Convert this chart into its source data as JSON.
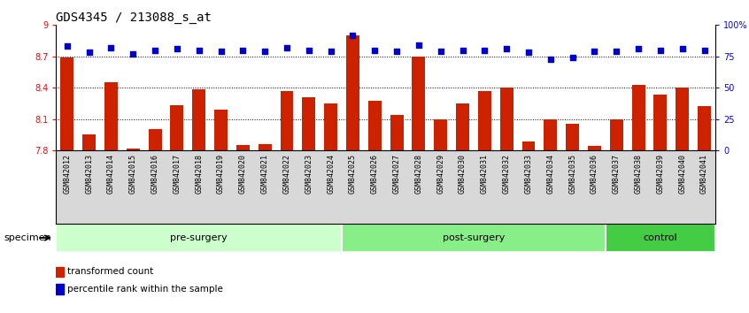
{
  "title": "GDS4345 / 213088_s_at",
  "categories": [
    "GSM842012",
    "GSM842013",
    "GSM842014",
    "GSM842015",
    "GSM842016",
    "GSM842017",
    "GSM842018",
    "GSM842019",
    "GSM842020",
    "GSM842021",
    "GSM842022",
    "GSM842023",
    "GSM842024",
    "GSM842025",
    "GSM842026",
    "GSM842027",
    "GSM842028",
    "GSM842029",
    "GSM842030",
    "GSM842031",
    "GSM842032",
    "GSM842033",
    "GSM842034",
    "GSM842035",
    "GSM842036",
    "GSM842037",
    "GSM842038",
    "GSM842039",
    "GSM842040",
    "GSM842041"
  ],
  "bar_values": [
    8.69,
    7.95,
    8.45,
    7.82,
    8.0,
    8.23,
    8.38,
    8.19,
    7.85,
    7.86,
    8.37,
    8.31,
    8.25,
    8.9,
    8.27,
    8.14,
    8.7,
    8.1,
    8.25,
    8.37,
    8.4,
    7.88,
    8.1,
    8.05,
    7.84,
    8.1,
    8.43,
    8.33,
    8.4,
    8.22
  ],
  "percentile_values": [
    83,
    78,
    82,
    77,
    80,
    81,
    80,
    79,
    80,
    79,
    82,
    80,
    79,
    92,
    80,
    79,
    84,
    79,
    80,
    80,
    81,
    78,
    73,
    74,
    79,
    79,
    81,
    80,
    81,
    80
  ],
  "ylim": [
    7.8,
    9.0
  ],
  "yticks": [
    7.8,
    8.1,
    8.4,
    8.7,
    9.0
  ],
  "ytick_labels": [
    "7.8",
    "8.1",
    "8.4",
    "8.7",
    "9"
  ],
  "right_yticks": [
    0,
    25,
    50,
    75,
    100
  ],
  "right_ytick_labels": [
    "0",
    "25",
    "50",
    "75",
    "100%"
  ],
  "bar_color": "#cc2200",
  "dot_color": "#0000cc",
  "bar_bottom": 7.8,
  "groups": [
    {
      "label": "pre-surgery",
      "start": 0,
      "end": 13,
      "color": "#ccffcc"
    },
    {
      "label": "post-surgery",
      "start": 13,
      "end": 25,
      "color": "#88ee88"
    },
    {
      "label": "control",
      "start": 25,
      "end": 30,
      "color": "#44cc44"
    }
  ],
  "legend_items": [
    {
      "label": "transformed count",
      "color": "#cc2200"
    },
    {
      "label": "percentile rank within the sample",
      "color": "#0000cc"
    }
  ],
  "specimen_label": "specimen",
  "title_fontsize": 10,
  "tick_fontsize": 7,
  "xtick_fontsize": 6,
  "group_fontsize": 8,
  "legend_fontsize": 7.5
}
